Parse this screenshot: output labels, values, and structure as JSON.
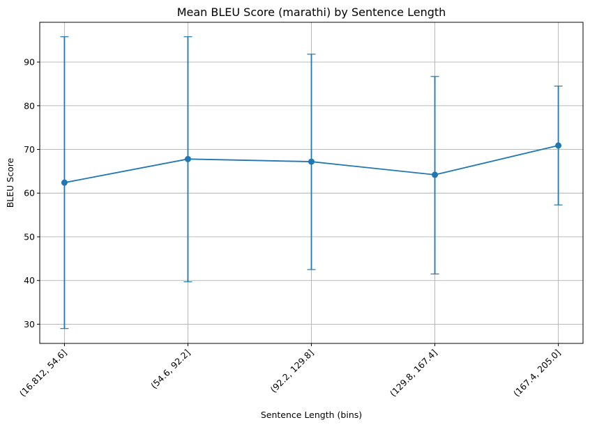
{
  "chart_data": {
    "type": "line",
    "title": "Mean BLEU Score (marathi) by Sentence Length",
    "xlabel": "Sentence Length (bins)",
    "ylabel": "BLEU Score",
    "categories": [
      "(16.812, 54.6]",
      "(54.6, 92.2]",
      "(92.2, 129.8]",
      "(129.8, 167.4]",
      "(167.4, 205.0]"
    ],
    "series": [
      {
        "values": [
          62.4,
          67.8,
          67.2,
          64.2,
          70.9
        ],
        "error_lower": [
          29.0,
          39.7,
          42.5,
          41.5,
          57.3
        ],
        "error_upper": [
          95.8,
          95.8,
          91.8,
          86.7,
          84.5
        ]
      }
    ],
    "yticks": [
      30,
      40,
      50,
      60,
      70,
      80,
      90
    ],
    "ylim": [
      25.6,
      99.1
    ],
    "grid": true,
    "x_tick_rotation": 45,
    "color": "#1f77b4"
  }
}
